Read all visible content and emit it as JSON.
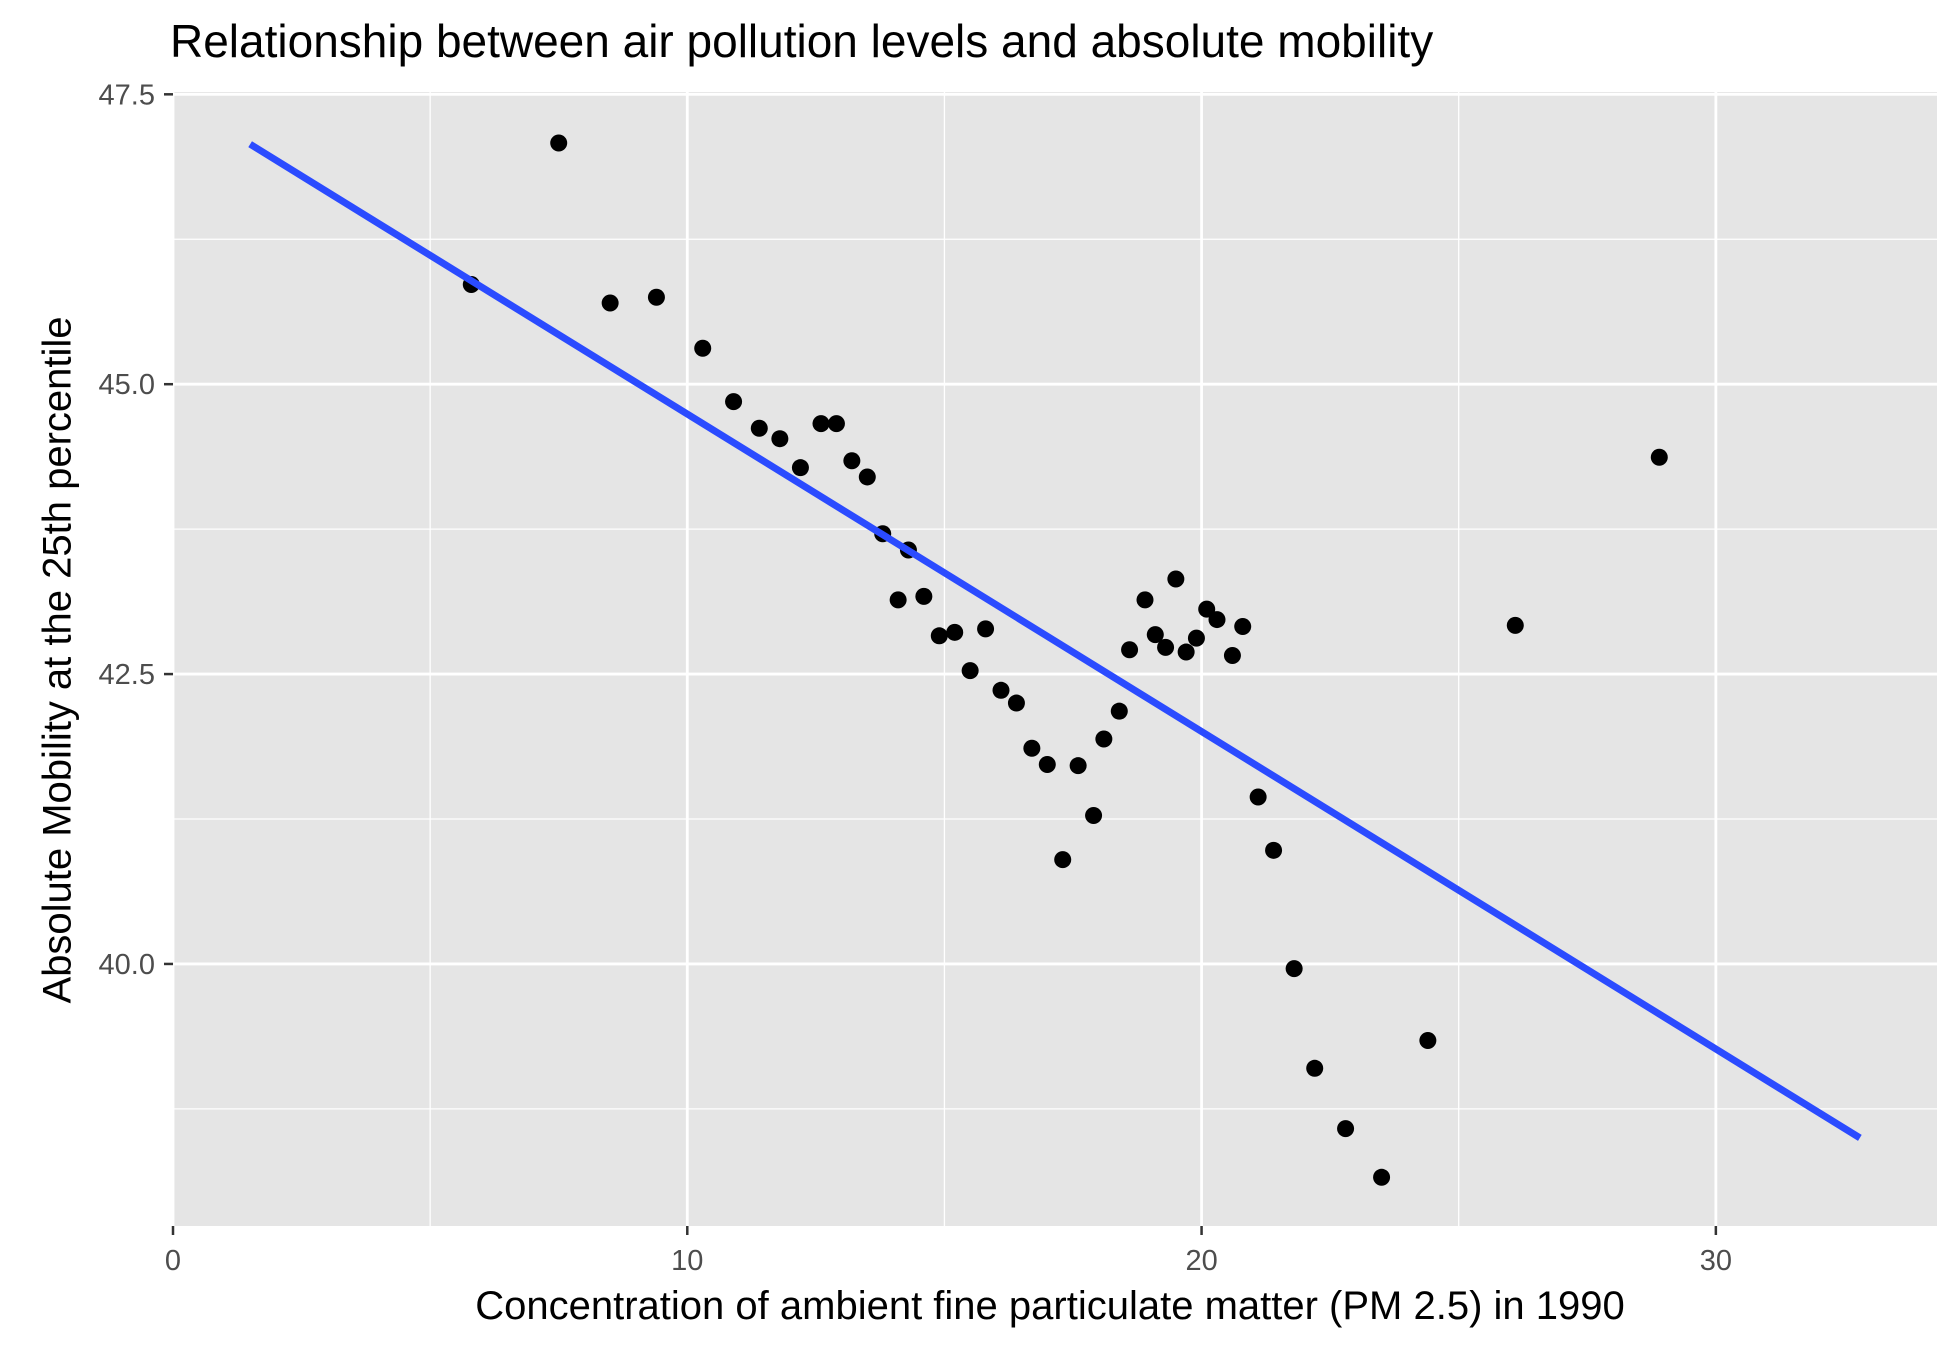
{
  "chart_data": {
    "type": "scatter",
    "title": "Relationship between air pollution levels and absolute mobility",
    "xlabel": "Concentration of ambient fine particulate matter (PM 2.5) in 1990",
    "ylabel": "Absolute Mobility at the 25th percentile",
    "xlim": [
      0,
      34.3
    ],
    "ylim": [
      37.74,
      47.52
    ],
    "x_ticks": [
      0,
      10,
      20,
      30
    ],
    "x_tick_labels": [
      "0",
      "10",
      "20",
      "30"
    ],
    "y_ticks": [
      40.0,
      42.5,
      45.0,
      47.5
    ],
    "y_tick_labels": [
      "40.0",
      "42.5",
      "45.0",
      "47.5"
    ],
    "grid": true,
    "points": [
      {
        "x": 5.8,
        "y": 45.86
      },
      {
        "x": 7.5,
        "y": 47.08
      },
      {
        "x": 8.5,
        "y": 45.7
      },
      {
        "x": 9.4,
        "y": 45.75
      },
      {
        "x": 10.3,
        "y": 45.31
      },
      {
        "x": 10.9,
        "y": 44.85
      },
      {
        "x": 11.4,
        "y": 44.62
      },
      {
        "x": 11.8,
        "y": 44.53
      },
      {
        "x": 12.2,
        "y": 44.28
      },
      {
        "x": 12.6,
        "y": 44.66
      },
      {
        "x": 12.9,
        "y": 44.66
      },
      {
        "x": 13.2,
        "y": 44.34
      },
      {
        "x": 13.5,
        "y": 44.2
      },
      {
        "x": 13.8,
        "y": 43.71
      },
      {
        "x": 14.1,
        "y": 43.14
      },
      {
        "x": 14.3,
        "y": 43.57
      },
      {
        "x": 14.6,
        "y": 43.17
      },
      {
        "x": 14.9,
        "y": 42.83
      },
      {
        "x": 15.2,
        "y": 42.86
      },
      {
        "x": 15.5,
        "y": 42.53
      },
      {
        "x": 15.8,
        "y": 42.89
      },
      {
        "x": 16.1,
        "y": 42.36
      },
      {
        "x": 16.4,
        "y": 42.25
      },
      {
        "x": 16.7,
        "y": 41.86
      },
      {
        "x": 17.0,
        "y": 41.72
      },
      {
        "x": 17.3,
        "y": 40.9
      },
      {
        "x": 17.6,
        "y": 41.71
      },
      {
        "x": 17.9,
        "y": 41.28
      },
      {
        "x": 18.1,
        "y": 41.94
      },
      {
        "x": 18.4,
        "y": 42.18
      },
      {
        "x": 18.6,
        "y": 42.71
      },
      {
        "x": 18.9,
        "y": 43.14
      },
      {
        "x": 19.1,
        "y": 42.84
      },
      {
        "x": 19.3,
        "y": 42.73
      },
      {
        "x": 19.5,
        "y": 43.32
      },
      {
        "x": 19.7,
        "y": 42.69
      },
      {
        "x": 19.9,
        "y": 42.81
      },
      {
        "x": 20.1,
        "y": 43.06
      },
      {
        "x": 20.3,
        "y": 42.97
      },
      {
        "x": 20.6,
        "y": 42.66
      },
      {
        "x": 20.8,
        "y": 42.91
      },
      {
        "x": 21.1,
        "y": 41.44
      },
      {
        "x": 21.4,
        "y": 40.98
      },
      {
        "x": 21.8,
        "y": 39.96
      },
      {
        "x": 22.2,
        "y": 39.1
      },
      {
        "x": 22.8,
        "y": 38.58
      },
      {
        "x": 23.5,
        "y": 38.16
      },
      {
        "x": 24.4,
        "y": 39.34
      },
      {
        "x": 26.1,
        "y": 42.92
      },
      {
        "x": 28.9,
        "y": 44.37
      }
    ],
    "trend_line": {
      "x": [
        1.5,
        32.8
      ],
      "y": [
        47.07,
        38.5
      ],
      "color": "#2B4BFF"
    },
    "point_color": "#000000",
    "panel_background": "#E5E5E5",
    "grid_color": "#FFFFFF"
  }
}
